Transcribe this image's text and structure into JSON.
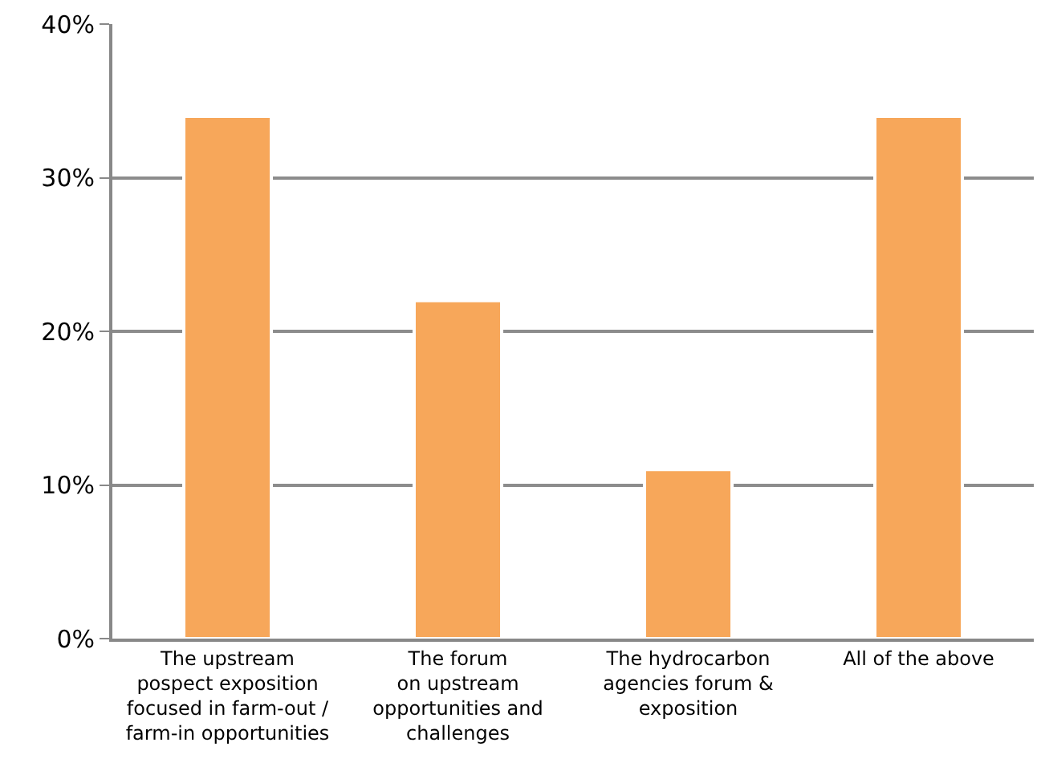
{
  "chart_data": {
    "type": "bar",
    "categories": [
      "The upstream\npospect exposition\nfocused in farm-out /\nfarm-in opportunities",
      "The forum\non upstream\nopportunities and\nchallenges",
      "The hydrocarbon\nagencies forum &\nexposition",
      "All of the above"
    ],
    "values": [
      34,
      22,
      11,
      34
    ],
    "color": "#f7a75a",
    "ylim": [
      0,
      40
    ],
    "yticks": [
      {
        "value": 0,
        "label": "0%"
      },
      {
        "value": 10,
        "label": "10%"
      },
      {
        "value": 20,
        "label": "20%"
      },
      {
        "value": 30,
        "label": "30%"
      },
      {
        "value": 40,
        "label": "40%"
      }
    ],
    "grid": "y",
    "legend": false
  }
}
